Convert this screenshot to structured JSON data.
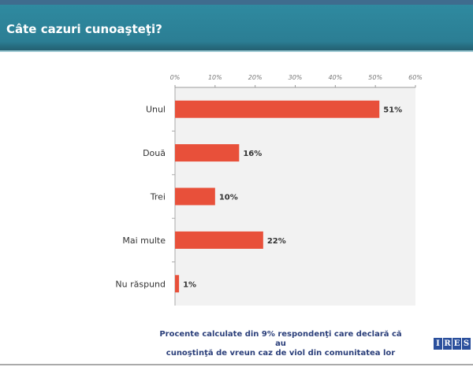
{
  "header": {
    "title": "Câte cazuri cunoaşteţi?"
  },
  "chart_data": {
    "type": "bar",
    "orientation": "horizontal",
    "categories": [
      "Unul",
      "Două",
      "Trei",
      "Mai multe",
      "Nu răspund"
    ],
    "values": [
      51,
      16,
      10,
      22,
      1
    ],
    "data_labels": [
      "51%",
      "16%",
      "10%",
      "22%",
      "1%"
    ],
    "xlim": [
      0,
      60
    ],
    "xticks": [
      0,
      10,
      20,
      30,
      40,
      50,
      60
    ],
    "xtick_labels": [
      "0%",
      "10%",
      "20%",
      "30%",
      "40%",
      "50%",
      "60%"
    ],
    "bar_color": "#e8503a",
    "title": "",
    "xlabel": "",
    "ylabel": ""
  },
  "footer": {
    "note_line1": "Procente calculate din 9% respondenţi care declară că au",
    "note_line2": "cunoştinţă de vreun caz de viol din comunitatea lor",
    "logo_text": "IRES",
    "logo_letters": [
      "I",
      "R",
      "E",
      "S"
    ]
  }
}
